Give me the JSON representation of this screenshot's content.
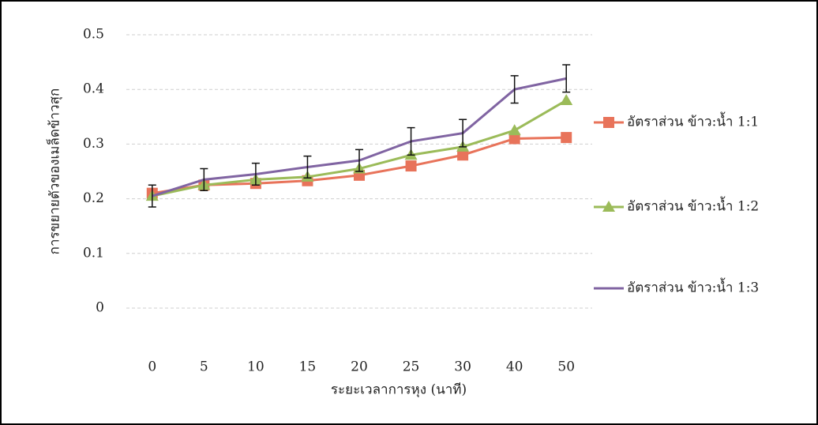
{
  "chart_data": {
    "type": "line",
    "y_label": "การขยายตัวของเมล็ดข้าวสุก",
    "x_label": "ระยะเวลาการหุง (นาที)",
    "categories": [
      "0",
      "5",
      "10",
      "15",
      "20",
      "25",
      "30",
      "40",
      "50"
    ],
    "series": [
      {
        "name": "อัตราส่วน ข้าว:น้ำ 1:1",
        "color": "#e8735a",
        "marker": "square",
        "values": [
          0.21,
          0.225,
          0.228,
          0.233,
          0.243,
          0.26,
          0.28,
          0.31,
          0.312
        ]
      },
      {
        "name": "อัตราส่วน ข้าว:น้ำ 1:2",
        "color": "#9bbb59",
        "marker": "triangle",
        "values": [
          0.205,
          0.225,
          0.235,
          0.24,
          0.255,
          0.28,
          0.295,
          0.325,
          0.38
        ]
      },
      {
        "name": "อัตราส่วน ข้าว:น้ำ 1:3",
        "color": "#8064a2",
        "marker": "none",
        "values": [
          0.205,
          0.235,
          0.245,
          0.258,
          0.27,
          0.305,
          0.32,
          0.4,
          0.42
        ],
        "errors": [
          0.02,
          0.02,
          0.02,
          0.02,
          0.02,
          0.025,
          0.025,
          0.025,
          0.025
        ]
      }
    ],
    "ylim": [
      0,
      0.5
    ],
    "yticks": [
      0,
      0.1,
      0.2,
      0.3,
      0.4,
      0.5
    ],
    "grid": true,
    "legend": "right"
  }
}
